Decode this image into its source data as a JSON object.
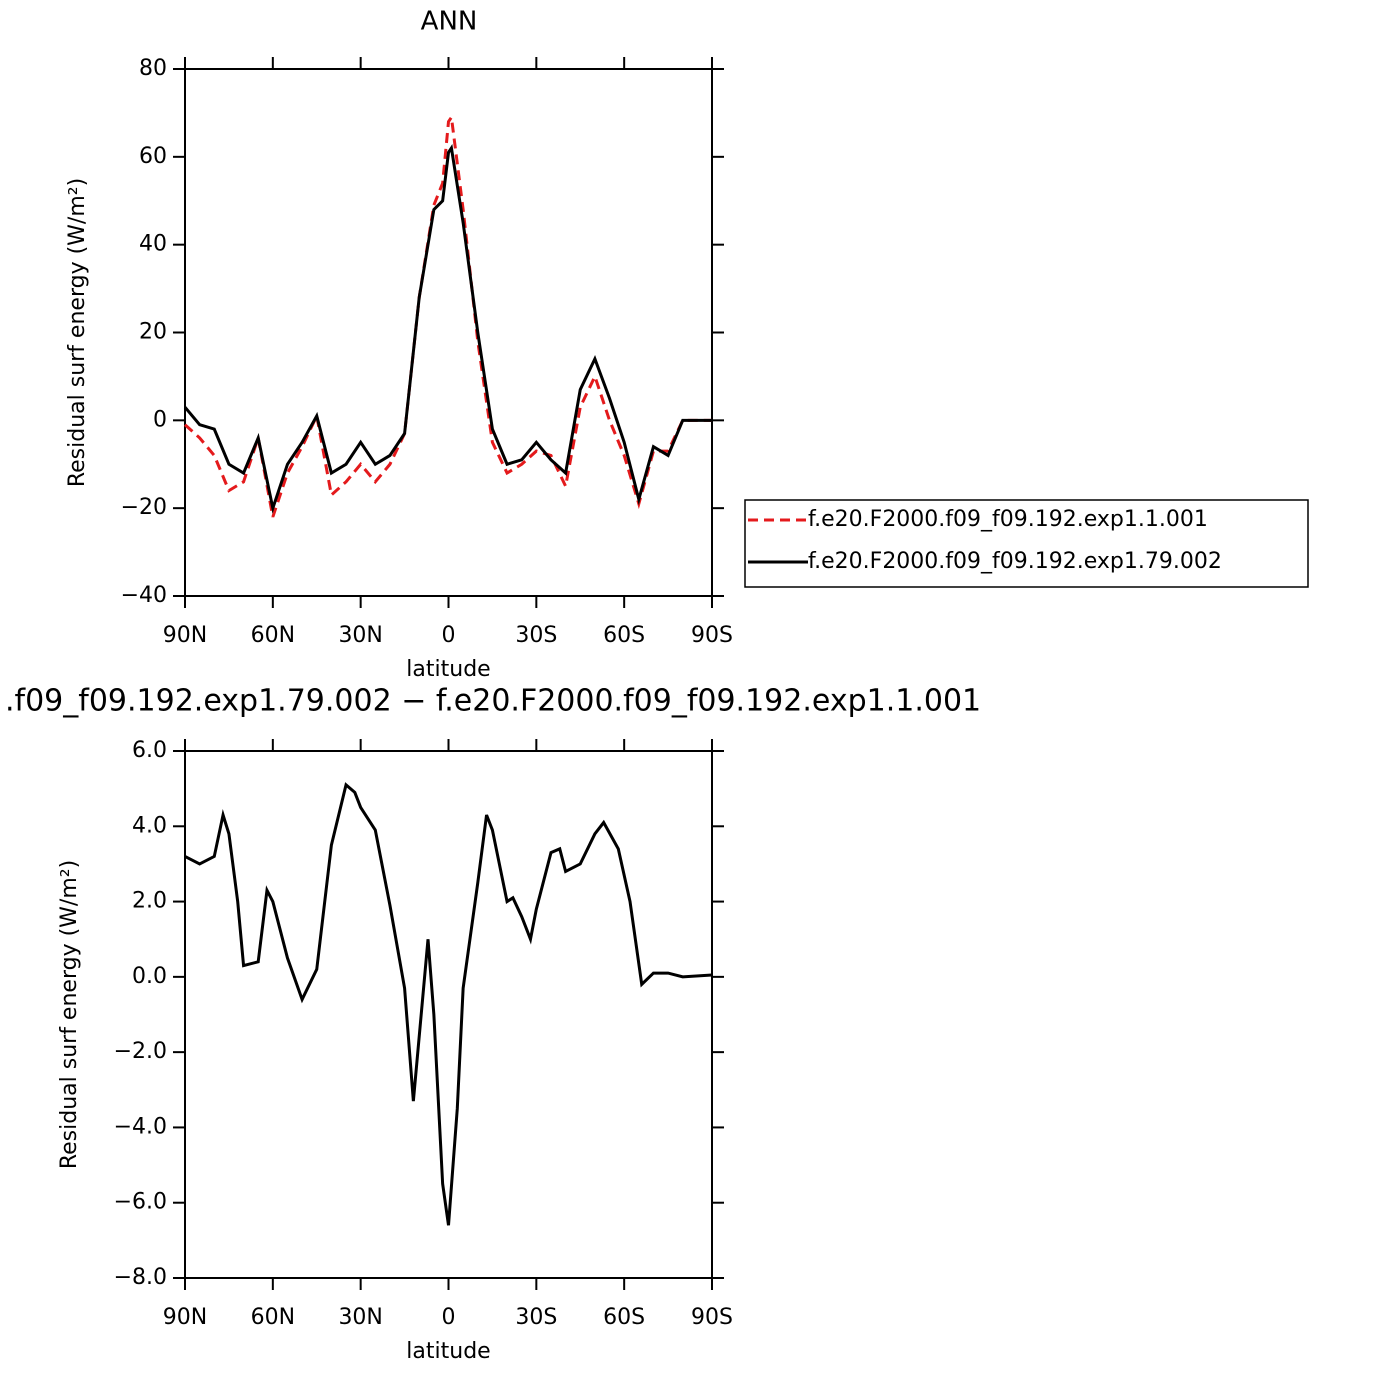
{
  "chart_data": [
    {
      "type": "line",
      "title": "ANN",
      "x_label": "latitude",
      "y_label": "Residual surf energy (W/m²)",
      "x": [
        90,
        85,
        80,
        75,
        70,
        65,
        60,
        55,
        50,
        45,
        40,
        35,
        30,
        25,
        20,
        15,
        10,
        5,
        2,
        0,
        -1,
        -5,
        -10,
        -15,
        -20,
        -25,
        -30,
        -35,
        -40,
        -45,
        -50,
        -55,
        -60,
        -65,
        -70,
        -75,
        -80,
        -85,
        -90
      ],
      "series": [
        {
          "name": "f.e20.F2000.f09_f09.192.exp1.1.001",
          "color": "#e41a1c",
          "line_style": "dashed",
          "values": [
            -1,
            -4,
            -8,
            -16,
            -14,
            -4,
            -22,
            -12,
            -6,
            1,
            -17,
            -14,
            -10,
            -14,
            -10,
            -3,
            28,
            49,
            54,
            68,
            69,
            48,
            18,
            -5,
            -12,
            -10,
            -7,
            -8,
            -15,
            3,
            10,
            0,
            -8,
            -19,
            -7,
            -7,
            0,
            0,
            0
          ]
        },
        {
          "name": "f.e20.F2000.f09_f09.192.exp1.79.002",
          "color": "#000000",
          "line_style": "solid",
          "values": [
            3,
            -1,
            -2,
            -10,
            -12,
            -4,
            -20,
            -10,
            -5,
            1,
            -12,
            -10,
            -5,
            -10,
            -8,
            -3,
            28,
            48,
            50,
            61,
            62,
            45,
            20,
            -2,
            -10,
            -9,
            -5,
            -9,
            -12,
            7,
            14,
            5,
            -5,
            -18,
            -6,
            -8,
            0,
            0,
            0
          ]
        }
      ],
      "xlim": [
        90,
        -90
      ],
      "xticks": [
        {
          "value": 90,
          "label": "90N"
        },
        {
          "value": 60,
          "label": "60N"
        },
        {
          "value": 30,
          "label": "30N"
        },
        0,
        {
          "value": -30,
          "label": "30S"
        },
        {
          "value": -60,
          "label": "60S"
        },
        {
          "value": -90,
          "label": "90S"
        }
      ],
      "ylim": [
        -40,
        80
      ],
      "yticks": [
        {
          "value": -40,
          "label": "−40"
        },
        {
          "value": -20,
          "label": "−20"
        },
        0,
        20,
        40,
        60,
        80
      ],
      "legend": "right"
    },
    {
      "type": "line",
      "title": ".f09_f09.192.exp1.79.002 − f.e20.F2000.f09_f09.192.exp1.1.001",
      "x_label": "latitude",
      "y_label": "Residual surf energy (W/m²)",
      "x": [
        90,
        85,
        80,
        77,
        75,
        72,
        70,
        65,
        62,
        60,
        55,
        50,
        45,
        40,
        35,
        32,
        30,
        25,
        20,
        15,
        12,
        7,
        5,
        2,
        0,
        -3,
        -5,
        -10,
        -13,
        -15,
        -20,
        -22,
        -25,
        -28,
        -30,
        -35,
        -38,
        -40,
        -45,
        -50,
        -53,
        -58,
        -62,
        -66,
        -70,
        -75,
        -80,
        -90
      ],
      "values": [
        3.2,
        3.0,
        3.2,
        4.3,
        3.8,
        2.0,
        0.3,
        0.4,
        2.3,
        2.0,
        0.5,
        -0.6,
        0.2,
        3.5,
        5.1,
        4.9,
        4.5,
        3.9,
        1.9,
        -0.3,
        -3.3,
        1.0,
        -1.0,
        -5.5,
        -6.6,
        -3.5,
        -0.3,
        2.5,
        4.3,
        3.9,
        2.0,
        2.1,
        1.6,
        1.0,
        1.8,
        3.3,
        3.4,
        2.8,
        3.0,
        3.8,
        4.1,
        3.4,
        2.0,
        -0.2,
        0.1,
        0.1,
        0.0,
        0.05
      ],
      "color": "#000000",
      "xlim": [
        90,
        -90
      ],
      "xticks": [
        {
          "value": 90,
          "label": "90N"
        },
        {
          "value": 60,
          "label": "60N"
        },
        {
          "value": 30,
          "label": "30N"
        },
        0,
        {
          "value": -30,
          "label": "30S"
        },
        {
          "value": -60,
          "label": "60S"
        },
        {
          "value": -90,
          "label": "90S"
        }
      ],
      "ylim": [
        -8,
        6
      ],
      "yticks": [
        {
          "value": -8,
          "label": "−8.0"
        },
        {
          "value": -6,
          "label": "−6.0"
        },
        {
          "value": -4,
          "label": "−4.0"
        },
        {
          "value": -2,
          "label": "−2.0"
        },
        {
          "value": 0,
          "label": "0.0"
        },
        {
          "value": 2,
          "label": "2.0"
        },
        {
          "value": 4,
          "label": "4.0"
        },
        {
          "value": 6,
          "label": "6.0"
        }
      ]
    }
  ]
}
